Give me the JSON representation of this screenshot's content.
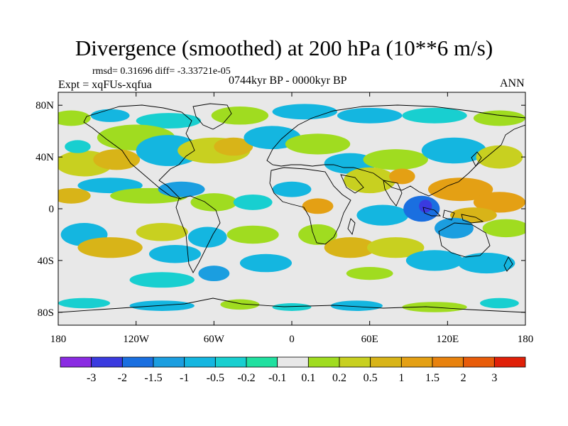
{
  "title": "Divergence (smoothed) at 200 hPa (10**6 m/s)",
  "stats": "rmsd= 0.31696 diff= -3.33721e-05",
  "experiment": "Expt = xqFUs-xqfua",
  "period": "0744kyr BP - 0000kyr BP",
  "season": "ANN",
  "lat_ticks": [
    {
      "lat": 80,
      "label": "80N"
    },
    {
      "lat": 40,
      "label": "40N"
    },
    {
      "lat": 0,
      "label": "0"
    },
    {
      "lat": -40,
      "label": "40S"
    },
    {
      "lat": -80,
      "label": "80S"
    }
  ],
  "lon_ticks": [
    {
      "lon": -180,
      "label": "180"
    },
    {
      "lon": -120,
      "label": "120W"
    },
    {
      "lon": -60,
      "label": "60W"
    },
    {
      "lon": 0,
      "label": "0"
    },
    {
      "lon": 60,
      "label": "60E"
    },
    {
      "lon": 120,
      "label": "120E"
    },
    {
      "lon": 180,
      "label": "180"
    }
  ],
  "colorbar": {
    "colors": [
      "#8a2be2",
      "#3a3adf",
      "#1a6fe0",
      "#1b9ee0",
      "#14b6e0",
      "#18cfd0",
      "#20e0a0",
      "#e8e8e8",
      "#a0dc20",
      "#c8d020",
      "#d8b418",
      "#e4a014",
      "#e8820e",
      "#e85c0a",
      "#e02008"
    ],
    "labels": [
      "-3",
      "-2",
      "-1.5",
      "-1",
      "-0.5",
      "-0.2",
      "-0.1",
      "0.1",
      "0.2",
      "0.5",
      "1",
      "1.5",
      "2",
      "3"
    ]
  },
  "blobs": [
    {
      "lon": -170,
      "lat": 70,
      "rx": 15,
      "ry": 6,
      "c": "#a0dc20"
    },
    {
      "lon": -140,
      "lat": 72,
      "rx": 15,
      "ry": 5,
      "c": "#14b6e0"
    },
    {
      "lon": -95,
      "lat": 68,
      "rx": 25,
      "ry": 6,
      "c": "#18cfd0"
    },
    {
      "lon": -40,
      "lat": 72,
      "rx": 22,
      "ry": 7,
      "c": "#a0dc20"
    },
    {
      "lon": 10,
      "lat": 75,
      "rx": 25,
      "ry": 6,
      "c": "#14b6e0"
    },
    {
      "lon": 60,
      "lat": 72,
      "rx": 25,
      "ry": 6,
      "c": "#14b6e0"
    },
    {
      "lon": 110,
      "lat": 72,
      "rx": 25,
      "ry": 6,
      "c": "#18cfd0"
    },
    {
      "lon": 160,
      "lat": 70,
      "rx": 20,
      "ry": 6,
      "c": "#a0dc20"
    },
    {
      "lon": -120,
      "lat": 55,
      "rx": 30,
      "ry": 10,
      "c": "#a0dc20"
    },
    {
      "lon": -160,
      "lat": 35,
      "rx": 22,
      "ry": 10,
      "c": "#c8d020"
    },
    {
      "lon": -135,
      "lat": 38,
      "rx": 18,
      "ry": 8,
      "c": "#d8b418"
    },
    {
      "lon": -165,
      "lat": 48,
      "rx": 10,
      "ry": 5,
      "c": "#18cfd0"
    },
    {
      "lon": -95,
      "lat": 45,
      "rx": 25,
      "ry": 12,
      "c": "#14b6e0"
    },
    {
      "lon": -60,
      "lat": 45,
      "rx": 28,
      "ry": 10,
      "c": "#c8d020"
    },
    {
      "lon": -45,
      "lat": 48,
      "rx": 15,
      "ry": 7,
      "c": "#d8b418"
    },
    {
      "lon": -15,
      "lat": 55,
      "rx": 22,
      "ry": 9,
      "c": "#14b6e0"
    },
    {
      "lon": 20,
      "lat": 50,
      "rx": 25,
      "ry": 8,
      "c": "#a0dc20"
    },
    {
      "lon": 45,
      "lat": 35,
      "rx": 20,
      "ry": 8,
      "c": "#14b6e0"
    },
    {
      "lon": 80,
      "lat": 38,
      "rx": 25,
      "ry": 8,
      "c": "#a0dc20"
    },
    {
      "lon": 125,
      "lat": 45,
      "rx": 25,
      "ry": 10,
      "c": "#14b6e0"
    },
    {
      "lon": 160,
      "lat": 40,
      "rx": 18,
      "ry": 9,
      "c": "#c8d020"
    },
    {
      "lon": -170,
      "lat": 10,
      "rx": 15,
      "ry": 6,
      "c": "#d8b418"
    },
    {
      "lon": -140,
      "lat": 18,
      "rx": 25,
      "ry": 6,
      "c": "#14b6e0"
    },
    {
      "lon": -110,
      "lat": 10,
      "rx": 30,
      "ry": 6,
      "c": "#a0dc20"
    },
    {
      "lon": -85,
      "lat": 15,
      "rx": 18,
      "ry": 6,
      "c": "#1b9ee0"
    },
    {
      "lon": -60,
      "lat": 5,
      "rx": 18,
      "ry": 7,
      "c": "#a0dc20"
    },
    {
      "lon": -30,
      "lat": 5,
      "rx": 15,
      "ry": 6,
      "c": "#18cfd0"
    },
    {
      "lon": 0,
      "lat": 15,
      "rx": 15,
      "ry": 6,
      "c": "#14b6e0"
    },
    {
      "lon": 20,
      "lat": 2,
      "rx": 12,
      "ry": 6,
      "c": "#e4a014"
    },
    {
      "lon": 60,
      "lat": 22,
      "rx": 20,
      "ry": 10,
      "c": "#c8d020"
    },
    {
      "lon": 85,
      "lat": 25,
      "rx": 10,
      "ry": 6,
      "c": "#e4a014"
    },
    {
      "lon": 70,
      "lat": -5,
      "rx": 20,
      "ry": 8,
      "c": "#14b6e0"
    },
    {
      "lon": 100,
      "lat": 0,
      "rx": 14,
      "ry": 10,
      "c": "#1a6fe0"
    },
    {
      "lon": 103,
      "lat": 2,
      "rx": 5,
      "ry": 5,
      "c": "#3a3adf"
    },
    {
      "lon": 130,
      "lat": 15,
      "rx": 25,
      "ry": 9,
      "c": "#e4a014"
    },
    {
      "lon": 160,
      "lat": 5,
      "rx": 20,
      "ry": 8,
      "c": "#e4a014"
    },
    {
      "lon": 140,
      "lat": -5,
      "rx": 18,
      "ry": 6,
      "c": "#d8b418"
    },
    {
      "lon": 125,
      "lat": -15,
      "rx": 15,
      "ry": 8,
      "c": "#1b9ee0"
    },
    {
      "lon": 165,
      "lat": -15,
      "rx": 18,
      "ry": 7,
      "c": "#a0dc20"
    },
    {
      "lon": -160,
      "lat": -20,
      "rx": 18,
      "ry": 9,
      "c": "#14b6e0"
    },
    {
      "lon": -140,
      "lat": -30,
      "rx": 25,
      "ry": 8,
      "c": "#d8b418"
    },
    {
      "lon": -100,
      "lat": -18,
      "rx": 20,
      "ry": 7,
      "c": "#c8d020"
    },
    {
      "lon": -90,
      "lat": -35,
      "rx": 20,
      "ry": 7,
      "c": "#14b6e0"
    },
    {
      "lon": -65,
      "lat": -22,
      "rx": 15,
      "ry": 8,
      "c": "#14b6e0"
    },
    {
      "lon": -30,
      "lat": -20,
      "rx": 20,
      "ry": 7,
      "c": "#a0dc20"
    },
    {
      "lon": -20,
      "lat": -42,
      "rx": 20,
      "ry": 7,
      "c": "#14b6e0"
    },
    {
      "lon": 20,
      "lat": -20,
      "rx": 15,
      "ry": 8,
      "c": "#a0dc20"
    },
    {
      "lon": 45,
      "lat": -30,
      "rx": 20,
      "ry": 8,
      "c": "#d8b418"
    },
    {
      "lon": 80,
      "lat": -30,
      "rx": 22,
      "ry": 8,
      "c": "#c8d020"
    },
    {
      "lon": 110,
      "lat": -40,
      "rx": 22,
      "ry": 8,
      "c": "#14b6e0"
    },
    {
      "lon": 150,
      "lat": -42,
      "rx": 22,
      "ry": 8,
      "c": "#14b6e0"
    },
    {
      "lon": -100,
      "lat": -55,
      "rx": 25,
      "ry": 6,
      "c": "#18cfd0"
    },
    {
      "lon": -60,
      "lat": -50,
      "rx": 12,
      "ry": 6,
      "c": "#1b9ee0"
    },
    {
      "lon": 60,
      "lat": -50,
      "rx": 18,
      "ry": 5,
      "c": "#a0dc20"
    },
    {
      "lon": -160,
      "lat": -73,
      "rx": 20,
      "ry": 4,
      "c": "#18cfd0"
    },
    {
      "lon": -100,
      "lat": -75,
      "rx": 25,
      "ry": 4,
      "c": "#14b6e0"
    },
    {
      "lon": -40,
      "lat": -74,
      "rx": 15,
      "ry": 4,
      "c": "#a0dc20"
    },
    {
      "lon": 0,
      "lat": -76,
      "rx": 15,
      "ry": 3,
      "c": "#18cfd0"
    },
    {
      "lon": 50,
      "lat": -75,
      "rx": 20,
      "ry": 4,
      "c": "#14b6e0"
    },
    {
      "lon": 110,
      "lat": -76,
      "rx": 25,
      "ry": 4,
      "c": "#a0dc20"
    },
    {
      "lon": 160,
      "lat": -73,
      "rx": 15,
      "ry": 4,
      "c": "#18cfd0"
    }
  ]
}
